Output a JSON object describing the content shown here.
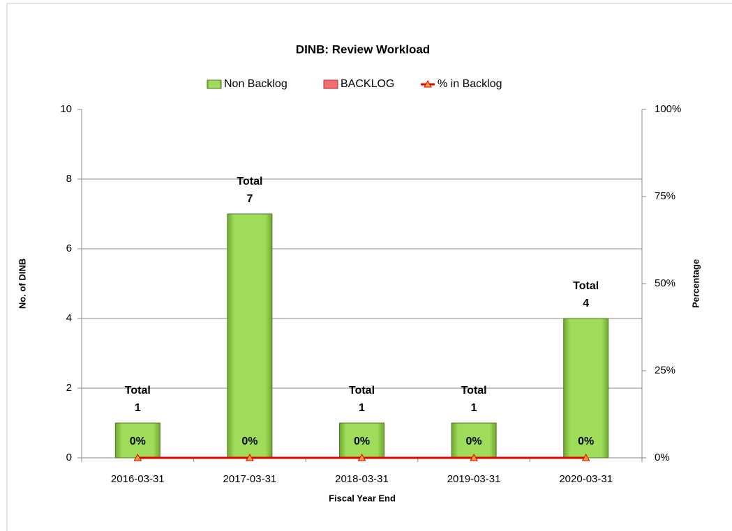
{
  "chart_data": {
    "type": "bar",
    "title": "DINB: Review Workload",
    "xlabel": "Fiscal Year End",
    "ylabel": "No. of DINB",
    "y2label": "Percentage",
    "categories": [
      "2016-03-31",
      "2017-03-31",
      "2018-03-31",
      "2019-03-31",
      "2020-03-31"
    ],
    "stacked": true,
    "total_label": "Total",
    "series": [
      {
        "name": "Non Backlog",
        "type": "bar",
        "color": "#92d050",
        "values": [
          1,
          7,
          1,
          1,
          4
        ]
      },
      {
        "name": "BACKLOG",
        "type": "bar",
        "color": "#f26d6d",
        "values": [
          0,
          0,
          0,
          0,
          0
        ]
      },
      {
        "name": "% in Backlog",
        "type": "line",
        "axis": "y2",
        "color": "#e00000",
        "marker_color": "#f0a030",
        "values": [
          0,
          0,
          0,
          0,
          0
        ],
        "value_labels": [
          "0%",
          "0%",
          "0%",
          "0%",
          "0%"
        ]
      }
    ],
    "ylim": [
      0,
      10
    ],
    "yticks": [
      0,
      2,
      4,
      6,
      8,
      10
    ],
    "y2lim": [
      0,
      100
    ],
    "y2ticks": [
      {
        "value": 0,
        "label": "0%"
      },
      {
        "value": 25,
        "label": "25%"
      },
      {
        "value": 50,
        "label": "50%"
      },
      {
        "value": 75,
        "label": "75%"
      },
      {
        "value": 100,
        "label": "100%"
      }
    ],
    "grid": true,
    "legend": "top"
  }
}
